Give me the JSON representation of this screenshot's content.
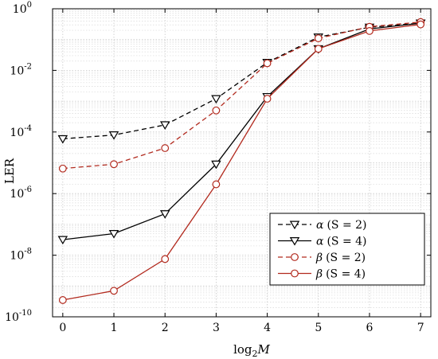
{
  "chart_data": {
    "type": "line",
    "title": "",
    "xlabel": "log",
    "xlabel_sub": "2",
    "xlabel_var": "M",
    "ylabel": "LER",
    "x": [
      0,
      1,
      2,
      3,
      4,
      5,
      6,
      7
    ],
    "xlim": [
      -0.2,
      7.2
    ],
    "ylim": [
      1e-10,
      1
    ],
    "yscale": "log",
    "x_ticks": [
      "0",
      "1",
      "2",
      "3",
      "4",
      "5",
      "6",
      "7"
    ],
    "y_ticks": [
      {
        "base": "10",
        "exp": "0"
      },
      {
        "base": "10",
        "exp": "-2"
      },
      {
        "base": "10",
        "exp": "-4"
      },
      {
        "base": "10",
        "exp": "-6"
      },
      {
        "base": "10",
        "exp": "-8"
      },
      {
        "base": "10",
        "exp": "-10"
      }
    ],
    "grid": true,
    "legend_position": "lower-right",
    "series": [
      {
        "name": "α (S = 2)",
        "label_parts": [
          "α",
          "(S = 2)"
        ],
        "color": "#000000",
        "dash": "dashed",
        "marker": "triangle-down",
        "values": [
          6e-05,
          8e-05,
          0.00017,
          0.0012,
          0.018,
          0.12,
          0.25,
          0.34
        ]
      },
      {
        "name": "α (S = 4)",
        "label_parts": [
          "α",
          "(S = 4)"
        ],
        "color": "#000000",
        "dash": "solid",
        "marker": "triangle-down",
        "values": [
          3.2e-08,
          5e-08,
          2.2e-07,
          9e-06,
          0.0014,
          0.05,
          0.22,
          0.34
        ]
      },
      {
        "name": "β (S = 2)",
        "label_parts": [
          "β",
          "(S = 2)"
        ],
        "color": "#b22a1e",
        "dash": "dashed",
        "marker": "circle",
        "values": [
          6.5e-06,
          9e-06,
          3e-05,
          0.0005,
          0.017,
          0.11,
          0.26,
          0.37
        ]
      },
      {
        "name": "β (S = 4)",
        "label_parts": [
          "β",
          "(S = 4)"
        ],
        "color": "#b22a1e",
        "dash": "solid",
        "marker": "circle",
        "values": [
          3.5e-10,
          7e-10,
          7.5e-09,
          2e-06,
          0.0012,
          0.05,
          0.19,
          0.31
        ]
      }
    ]
  }
}
